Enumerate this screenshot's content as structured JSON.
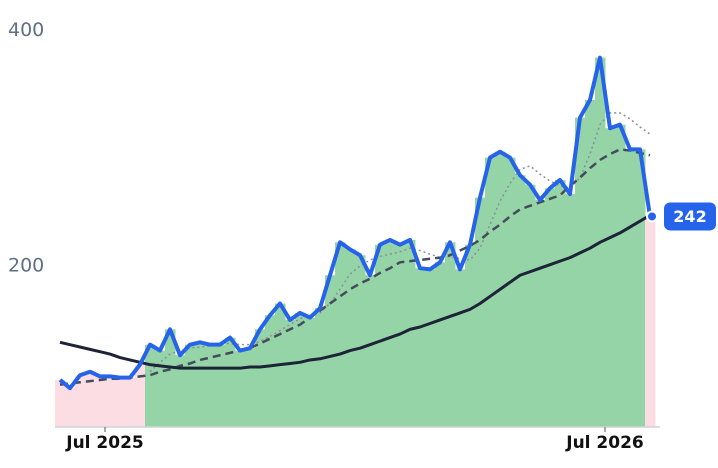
{
  "chart_data": {
    "type": "line",
    "categories": [
      null,
      null,
      null,
      null,
      null,
      "Jul 2025",
      null,
      null,
      null,
      null,
      null,
      null,
      null,
      null,
      null,
      null,
      null,
      null,
      null,
      null,
      null,
      null,
      null,
      null,
      null,
      null,
      null,
      null,
      null,
      null,
      null,
      null,
      null,
      null,
      null,
      null,
      null,
      null,
      null,
      null,
      null,
      null,
      null,
      null,
      null,
      null,
      null,
      null,
      null,
      null,
      null,
      null,
      null,
      null,
      null,
      "Jul 2026",
      null,
      null,
      null,
      null
    ],
    "ylim": [
      63,
      426
    ],
    "yticks": [
      200,
      400
    ],
    "series": [
      {
        "color": "#2563eb",
        "style": "solid",
        "width": 4,
        "values": [
          103,
          96,
          107,
          110,
          106,
          106,
          105,
          105,
          116,
          133,
          128,
          146,
          124,
          133,
          135,
          133,
          133,
          139,
          128,
          130,
          146,
          158,
          168,
          154,
          160,
          156,
          164,
          192,
          220,
          214,
          209,
          192,
          218,
          222,
          218,
          222,
          198,
          197,
          203,
          220,
          197,
          218,
          258,
          292,
          297,
          292,
          277,
          269,
          256,
          266,
          273,
          261,
          326,
          341,
          377,
          317,
          320,
          299,
          299,
          242
        ]
      },
      {
        "color": "#1e2437",
        "style": "solid",
        "width": 3,
        "values": [
          135,
          133,
          131,
          129,
          127,
          125,
          122,
          120,
          118,
          116,
          115,
          114,
          113,
          113,
          113,
          113,
          113,
          113,
          113,
          114,
          114,
          115,
          116,
          117,
          118,
          120,
          121,
          123,
          125,
          128,
          130,
          133,
          136,
          139,
          142,
          146,
          148,
          151,
          154,
          157,
          160,
          163,
          168,
          174,
          180,
          186,
          192,
          195,
          198,
          201,
          204,
          207,
          211,
          215,
          220,
          224,
          228,
          233,
          238,
          243
        ]
      },
      {
        "color": "#444c5c",
        "style": "dashed",
        "width": 2.5,
        "values": [
          99,
          100,
          101,
          102,
          103,
          104,
          104,
          105,
          106,
          107,
          110,
          112,
          115,
          117,
          120,
          122,
          124,
          126,
          128,
          130,
          134,
          138,
          142,
          146,
          150,
          156,
          162,
          168,
          174,
          180,
          185,
          189,
          194,
          198,
          203,
          204,
          205,
          206,
          207,
          209,
          213,
          217,
          222,
          229,
          235,
          242,
          248,
          251,
          254,
          257,
          260,
          268,
          275,
          283,
          290,
          295,
          299,
          298,
          296,
          294
        ]
      },
      {
        "color": "#8a8f99",
        "style": "dotted",
        "width": 1.5,
        "values": [
          null,
          null,
          null,
          null,
          null,
          null,
          null,
          null,
          null,
          110,
          118,
          125,
          128,
          130,
          131,
          132,
          134,
          134,
          133,
          133,
          136,
          140,
          145,
          150,
          155,
          158,
          160,
          168,
          180,
          193,
          200,
          205,
          208,
          210,
          212,
          215,
          213,
          210,
          207,
          208,
          206,
          205,
          215,
          235,
          255,
          270,
          282,
          285,
          278,
          272,
          268,
          266,
          275,
          295,
          320,
          330,
          330,
          325,
          318,
          312
        ]
      }
    ],
    "area_colors": {
      "above": "#95d4a6",
      "below": "#fddde4"
    }
  }
}
